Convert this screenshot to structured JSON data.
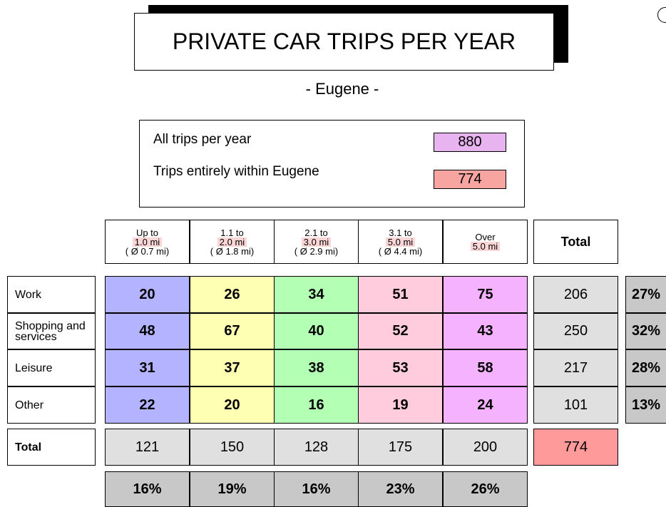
{
  "header": {
    "title": "PRIVATE CAR TRIPS PER YEAR",
    "subtitle": "- Eugene -"
  },
  "summary": [
    {
      "label": "All trips per year",
      "value": "880"
    },
    {
      "label": "Trips entirely within Eugene",
      "value": "774"
    }
  ],
  "table": {
    "columns": [
      [
        "Up to",
        "1.0 mi",
        "( Ø 0.7 mi)"
      ],
      [
        "1.1 to",
        "2.0 mi",
        "( Ø 1.8 mi)"
      ],
      [
        "2.1 to",
        "3.0 mi",
        "( Ø 2.9 mi)"
      ],
      [
        "3.1 to",
        "5.0 mi",
        "( Ø 4.4 mi)"
      ],
      [
        "Over",
        "5.0 mi"
      ]
    ],
    "total_header": "Total",
    "rows": [
      {
        "label": "Work",
        "values": [
          "20",
          "26",
          "34",
          "51",
          "75"
        ],
        "total": "206",
        "share": "27%"
      },
      {
        "label": "Shopping and services",
        "values": [
          "48",
          "67",
          "40",
          "52",
          "43"
        ],
        "total": "250",
        "share": "32%"
      },
      {
        "label": "Leisure",
        "values": [
          "31",
          "37",
          "38",
          "53",
          "58"
        ],
        "total": "217",
        "share": "28%"
      },
      {
        "label": "Other",
        "values": [
          "22",
          "20",
          "16",
          "19",
          "24"
        ],
        "total": "101",
        "share": "13%"
      }
    ],
    "totals": {
      "label": "Total",
      "values": [
        "121",
        "150",
        "128",
        "175",
        "200"
      ],
      "total": "774",
      "shares": [
        "16%",
        "19%",
        "16%",
        "23%",
        "26%"
      ]
    }
  }
}
